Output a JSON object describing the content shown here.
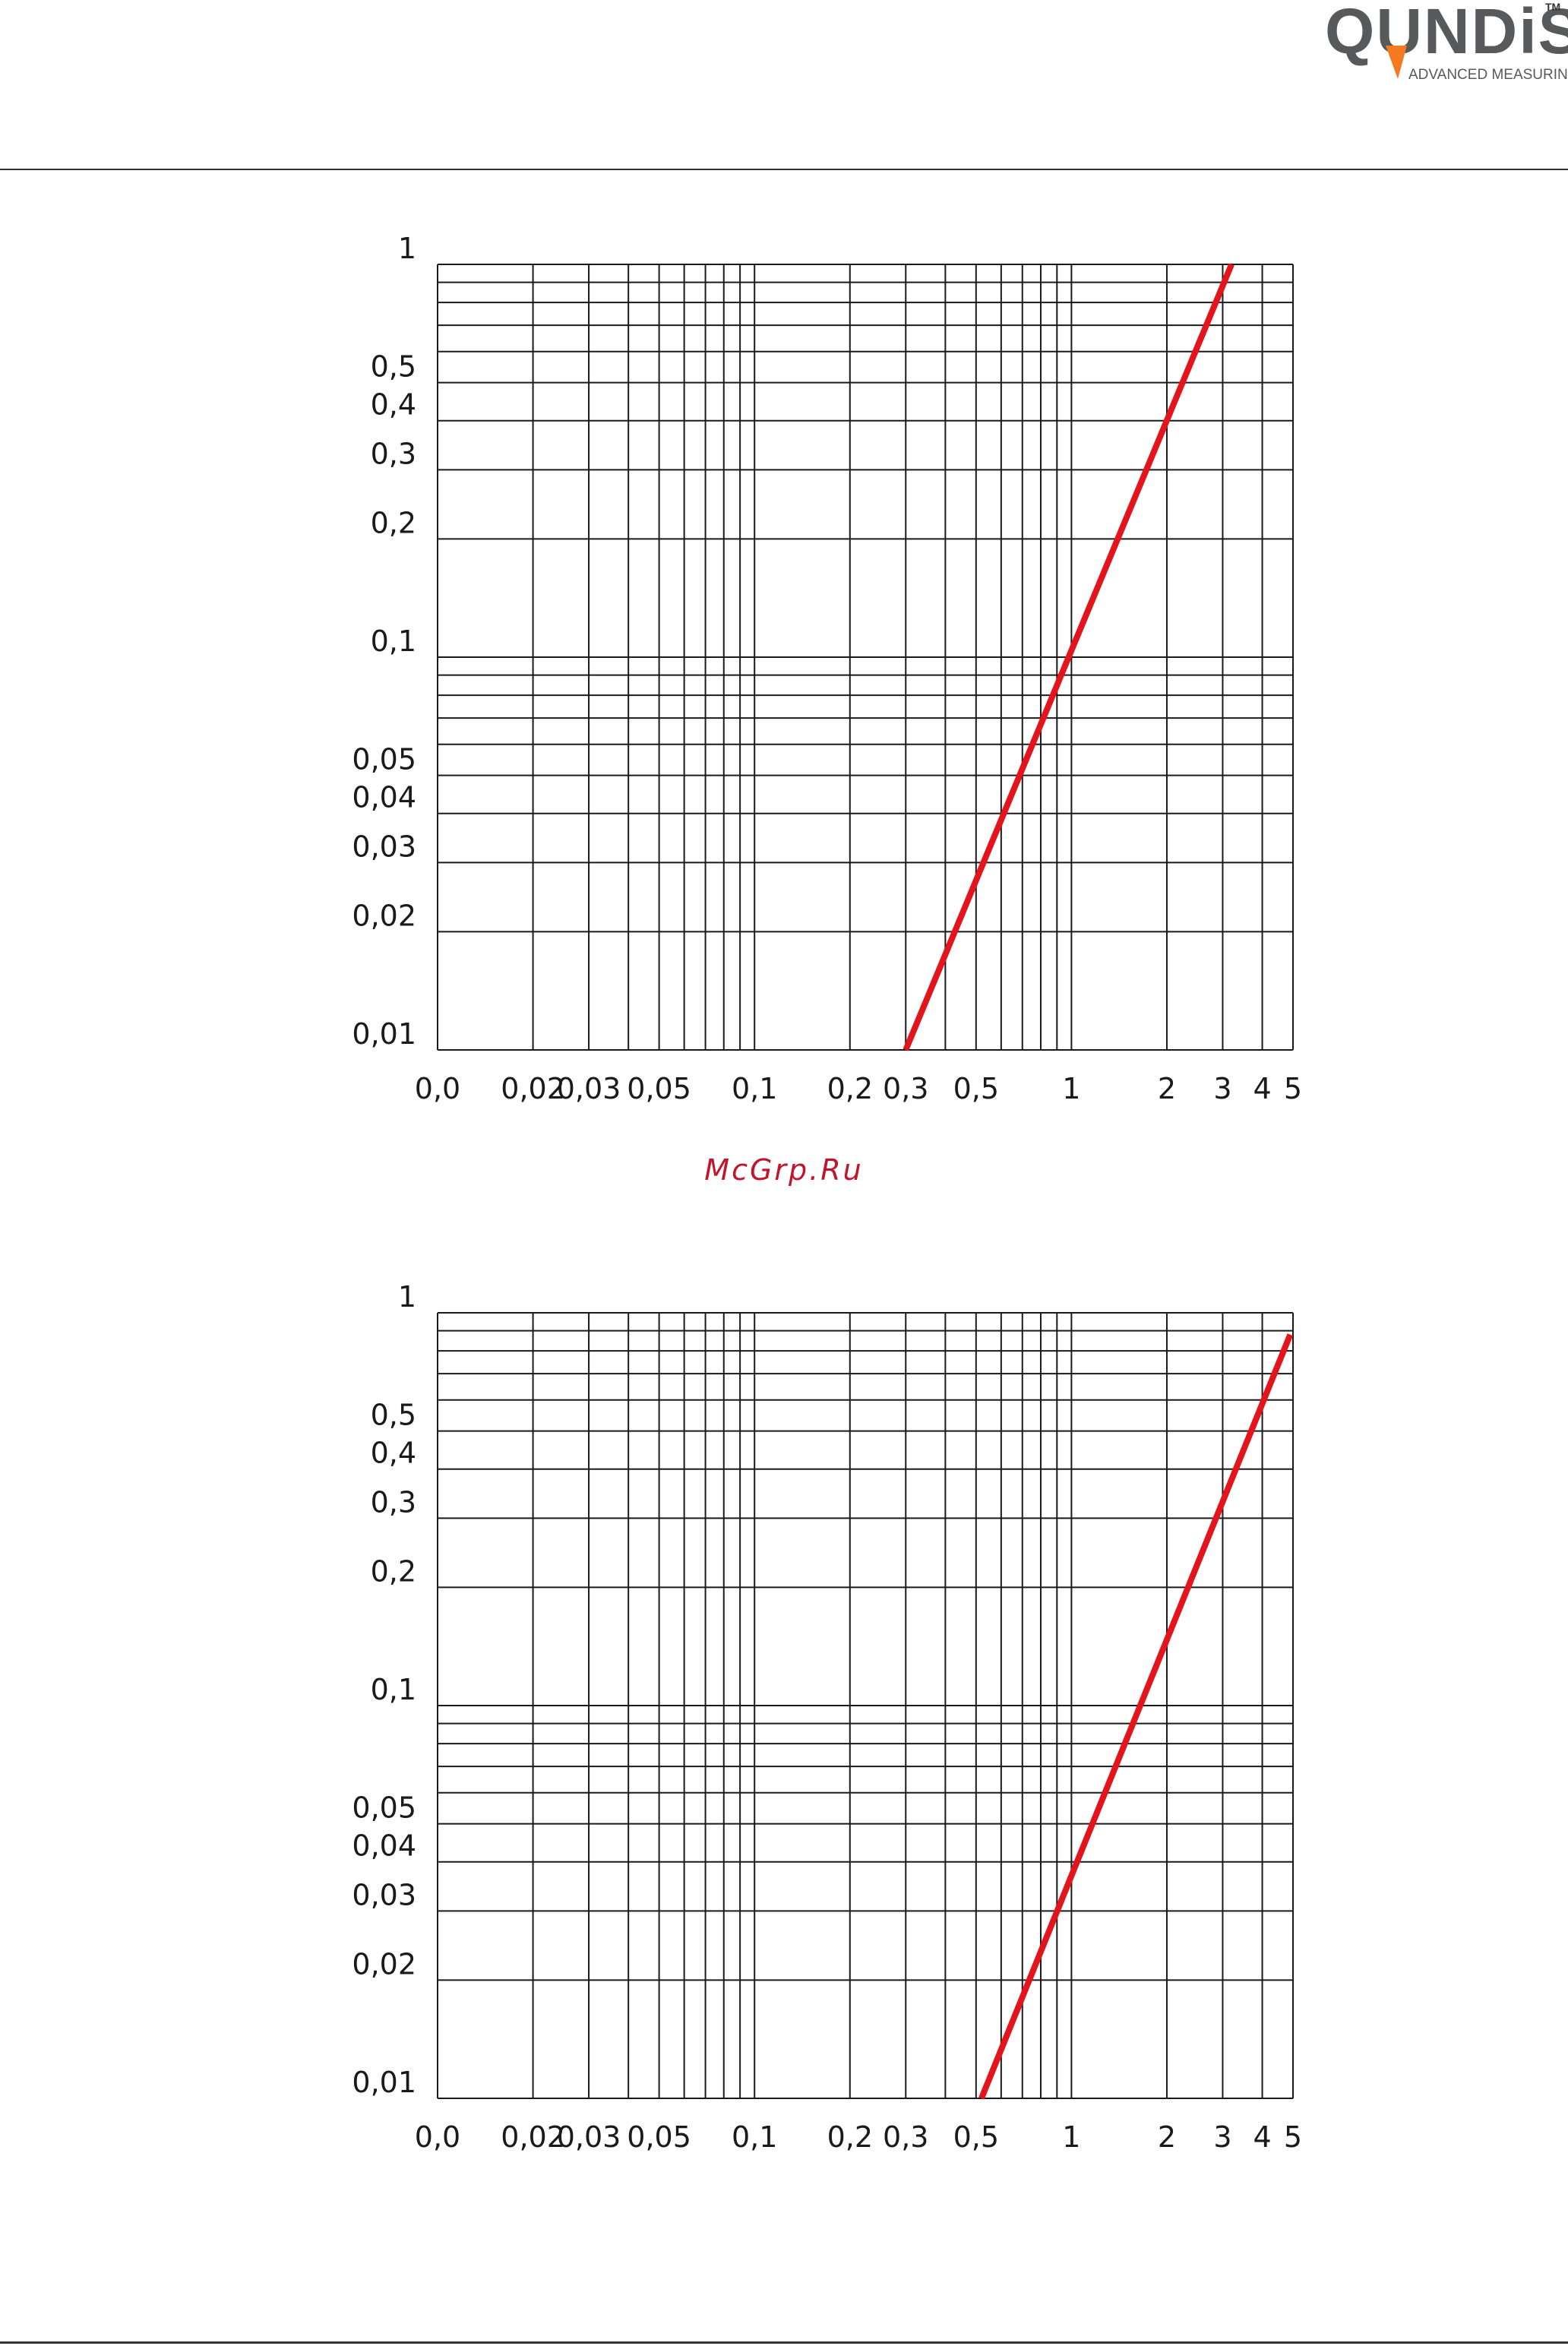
{
  "header": {
    "logo_text": "QUNDiS",
    "logo_tagline": "ADVANCED MEASURING SOLUTIONS.",
    "logo_tm": "TM",
    "brand_color": "#58595b",
    "accent_color": "#f47920"
  },
  "watermark": "McGrp.Ru",
  "chart_data": [
    {
      "type": "line",
      "scale": "log-log",
      "grid": true,
      "xlim": [
        0.01,
        5
      ],
      "ylim": [
        0.01,
        1
      ],
      "x_ticks": [
        "0,0",
        "0,02",
        "0,03",
        "0,05",
        "0,1",
        "0,2",
        "0,3",
        "0,5",
        "1",
        "2",
        "3",
        "4",
        "5"
      ],
      "y_ticks": [
        "1",
        "0,5",
        "0,4",
        "0,3",
        "0,2",
        "0,1",
        "0,05",
        "0,04",
        "0,03",
        "0,02",
        "0,01"
      ],
      "series": [
        {
          "color": "#e3141b",
          "x": [
            0.3,
            3.2
          ],
          "y": [
            0.01,
            1
          ]
        }
      ]
    },
    {
      "type": "line",
      "scale": "log-log",
      "grid": true,
      "xlim": [
        0.01,
        5
      ],
      "ylim": [
        0.01,
        1
      ],
      "x_ticks": [
        "0,0",
        "0,02",
        "0,03",
        "0,05",
        "0,1",
        "0,2",
        "0,3",
        "0,5",
        "1",
        "2",
        "3",
        "4",
        "5"
      ],
      "y_ticks": [
        "1",
        "0,5",
        "0,4",
        "0,3",
        "0,2",
        "0,1",
        "0,05",
        "0,04",
        "0,03",
        "0,02",
        "0,01"
      ],
      "series": [
        {
          "color": "#e3141b",
          "x": [
            0.52,
            4.9
          ],
          "y": [
            0.01,
            0.88
          ]
        }
      ]
    }
  ]
}
